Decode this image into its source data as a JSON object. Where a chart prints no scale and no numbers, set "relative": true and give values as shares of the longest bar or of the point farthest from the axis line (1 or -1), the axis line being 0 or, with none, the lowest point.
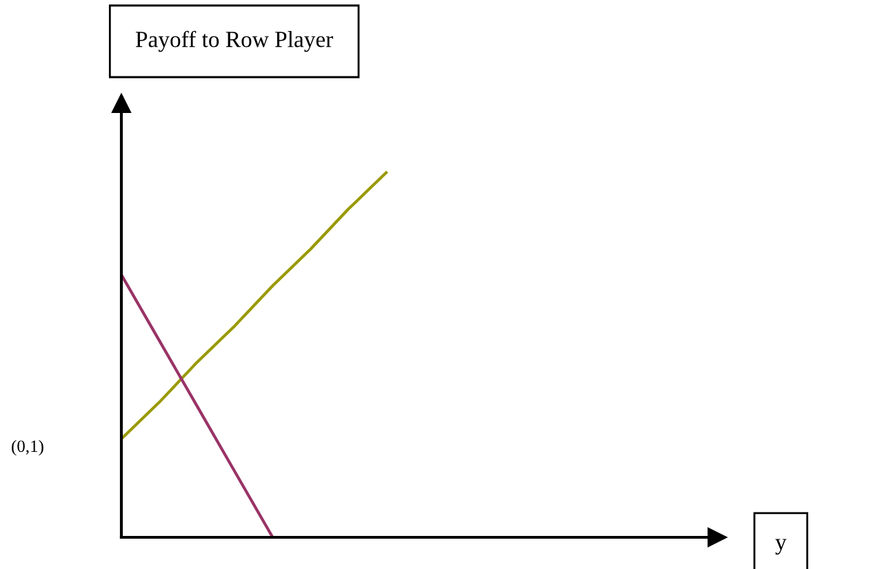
{
  "chart_data": {
    "type": "line",
    "title": "Payoff to Row Player",
    "xlabel": "y",
    "relative": true,
    "categories": [
      null,
      null,
      null,
      null,
      null,
      null,
      null,
      null,
      null,
      null,
      null,
      null,
      null,
      null,
      null,
      null
    ],
    "series": [
      {
        "color": "#999900",
        "values": [
          0.27,
          0.37,
          0.48,
          0.58,
          0.69,
          0.79,
          0.9,
          1,
          null,
          null,
          null,
          null,
          null,
          null,
          null,
          null
        ]
      },
      {
        "color": "#993366",
        "values": [
          0.72,
          0.54,
          0.36,
          0.18,
          0,
          null,
          null,
          null,
          null,
          null,
          null,
          null,
          null,
          null,
          null,
          null
        ]
      }
    ],
    "annotations": [
      "(0,1)"
    ],
    "line_style": "solid"
  }
}
